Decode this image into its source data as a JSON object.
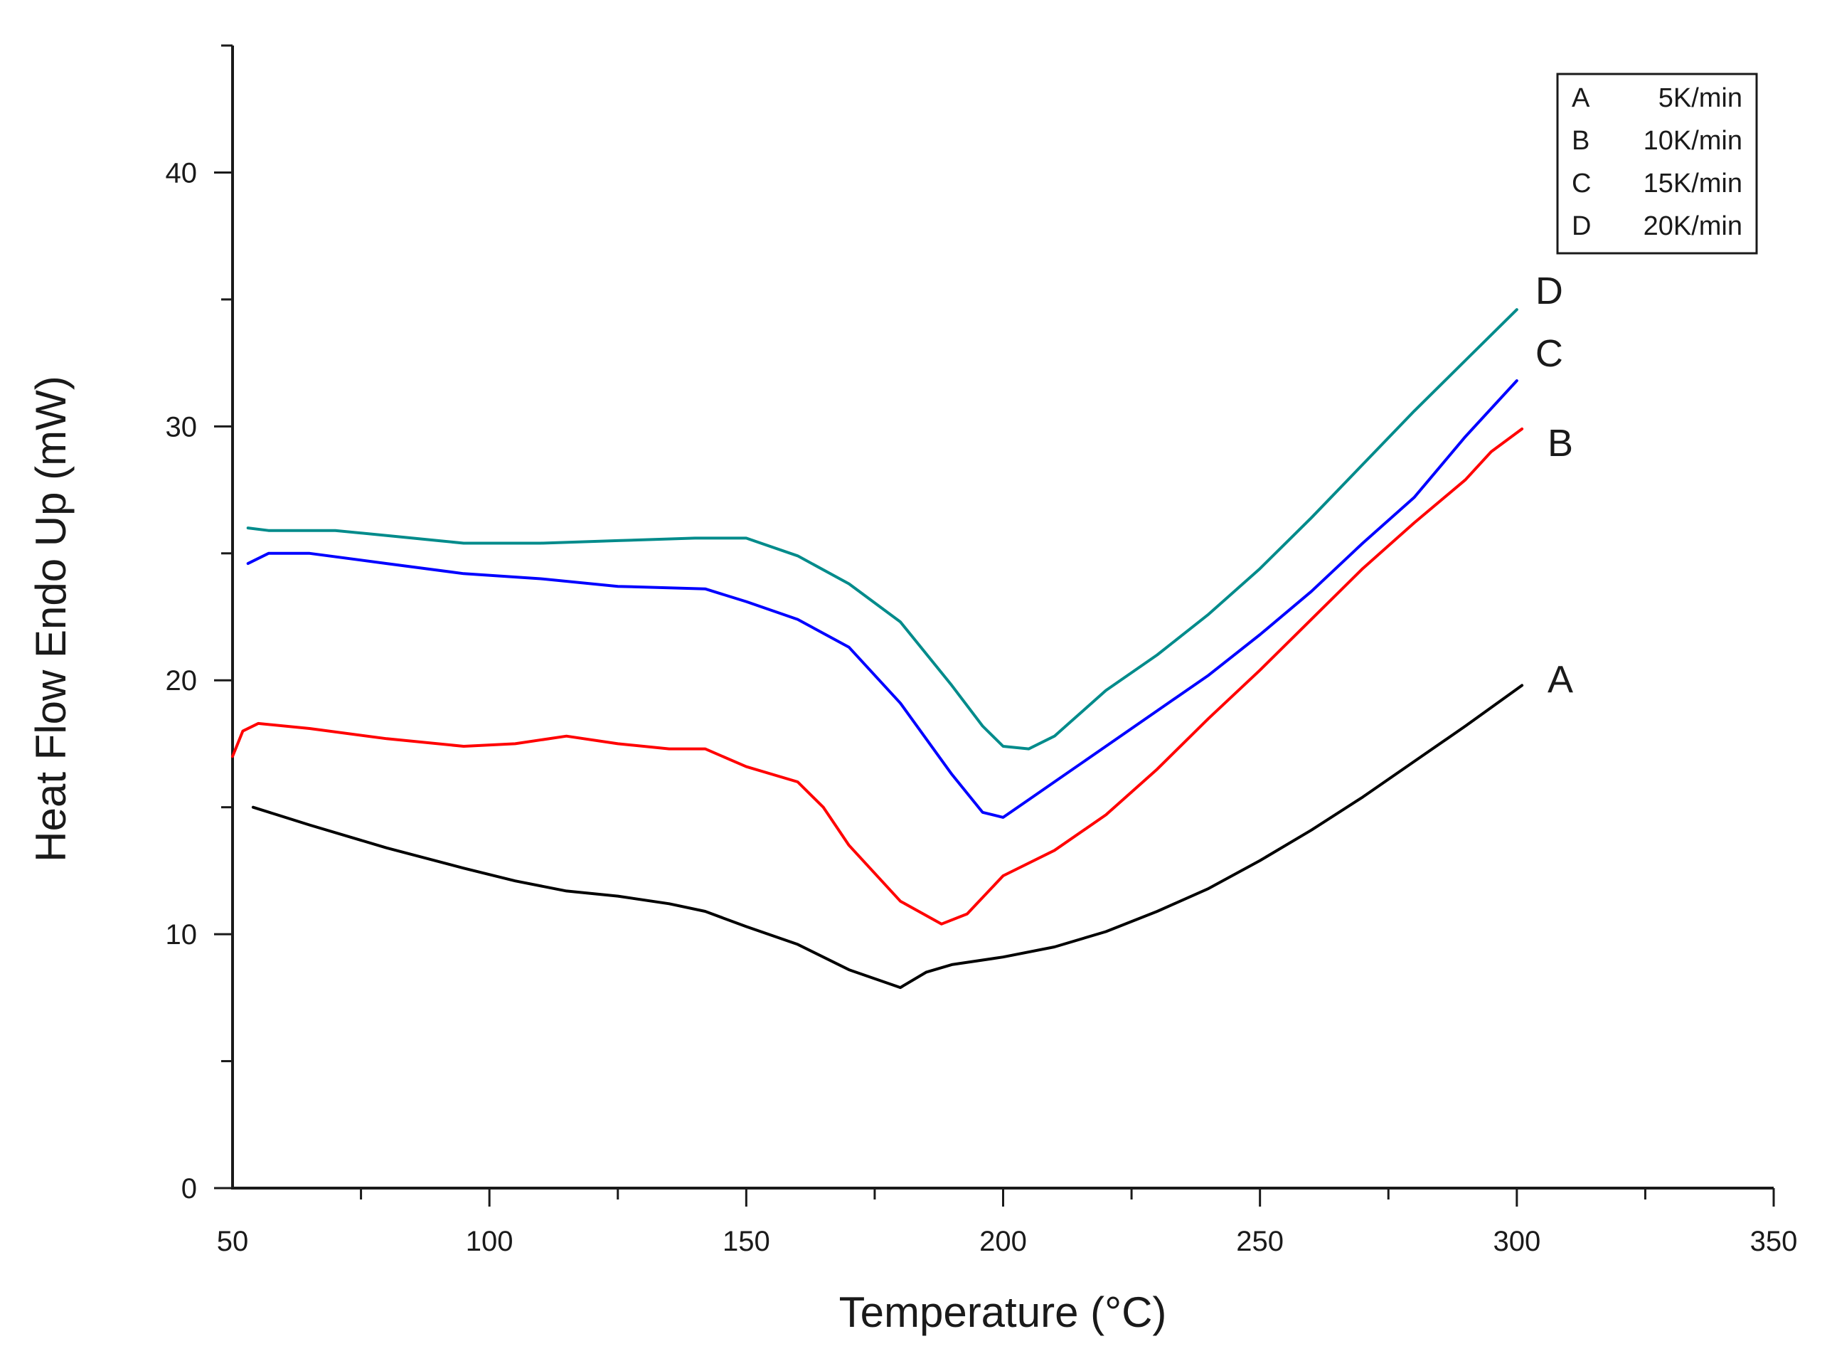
{
  "chart_data": {
    "type": "line",
    "title": "",
    "xlabel": "Temperature (°C)",
    "ylabel": "Heat Flow Endo Up (mW)",
    "xlim": [
      50,
      350
    ],
    "ylim": [
      0,
      45
    ],
    "x_major_ticks": [
      50,
      100,
      150,
      200,
      250,
      300,
      350
    ],
    "x_tick_labels": [
      "50",
      "100",
      "150",
      "200",
      "250",
      "300",
      "350"
    ],
    "y_major_ticks": [
      0,
      10,
      20,
      30,
      40
    ],
    "y_tick_labels": [
      "0",
      "10",
      "20",
      "30",
      "40"
    ],
    "grid": false,
    "legend": {
      "placement": "top-right",
      "entries": [
        {
          "key": "A",
          "text": "5K/min"
        },
        {
          "key": "B",
          "text": "10K/min"
        },
        {
          "key": "C",
          "text": "15K/min"
        },
        {
          "key": "D",
          "text": "20K/min"
        }
      ]
    },
    "series": [
      {
        "name": "A",
        "rate": "5K/min",
        "color": "#000000",
        "x": [
          54,
          65,
          80,
          95,
          105,
          115,
          125,
          135,
          142,
          150,
          160,
          170,
          180,
          185,
          190,
          200,
          210,
          220,
          230,
          240,
          250,
          260,
          270,
          280,
          290,
          301
        ],
        "y": [
          15.0,
          14.3,
          13.4,
          12.6,
          12.1,
          11.7,
          11.5,
          11.2,
          10.9,
          10.3,
          9.6,
          8.6,
          7.9,
          8.5,
          8.8,
          9.1,
          9.5,
          10.1,
          10.9,
          11.8,
          12.9,
          14.1,
          15.4,
          16.8,
          18.2,
          19.8
        ]
      },
      {
        "name": "B",
        "rate": "10K/min",
        "color": "#ff0000",
        "x": [
          50,
          52,
          55,
          65,
          80,
          95,
          105,
          115,
          125,
          135,
          142,
          150,
          160,
          165,
          170,
          180,
          188,
          193,
          200,
          210,
          220,
          230,
          240,
          250,
          260,
          270,
          280,
          290,
          295,
          301
        ],
        "y": [
          17.0,
          18.0,
          18.3,
          18.1,
          17.7,
          17.4,
          17.5,
          17.8,
          17.5,
          17.3,
          17.3,
          16.6,
          16.0,
          15.0,
          13.5,
          11.3,
          10.4,
          10.8,
          12.3,
          13.3,
          14.7,
          16.5,
          18.5,
          20.4,
          22.4,
          24.4,
          26.2,
          27.9,
          29.0,
          29.9
        ]
      },
      {
        "name": "C",
        "rate": "15K/min",
        "color": "#0000ff",
        "x": [
          53,
          57,
          65,
          80,
          95,
          110,
          125,
          142,
          150,
          160,
          170,
          180,
          190,
          196,
          200,
          205,
          210,
          220,
          230,
          240,
          250,
          260,
          270,
          280,
          290,
          300
        ],
        "y": [
          24.6,
          25.0,
          25.0,
          24.6,
          24.2,
          24.0,
          23.7,
          23.6,
          23.1,
          22.4,
          21.3,
          19.1,
          16.3,
          14.8,
          14.6,
          15.3,
          16.0,
          17.4,
          18.8,
          20.2,
          21.8,
          23.5,
          25.4,
          27.2,
          29.6,
          31.8
        ]
      },
      {
        "name": "D",
        "rate": "20K/min",
        "color": "#008b8b",
        "x": [
          53,
          57,
          70,
          80,
          95,
          110,
          125,
          140,
          150,
          160,
          170,
          180,
          190,
          196,
          200,
          205,
          210,
          220,
          230,
          240,
          250,
          260,
          270,
          280,
          290,
          300
        ],
        "y": [
          26.0,
          25.9,
          25.9,
          25.7,
          25.4,
          25.4,
          25.5,
          25.6,
          25.6,
          24.9,
          23.8,
          22.3,
          19.8,
          18.2,
          17.4,
          17.3,
          17.8,
          19.6,
          21.0,
          22.6,
          24.4,
          26.4,
          28.5,
          30.6,
          32.6,
          34.6
        ]
      }
    ]
  }
}
